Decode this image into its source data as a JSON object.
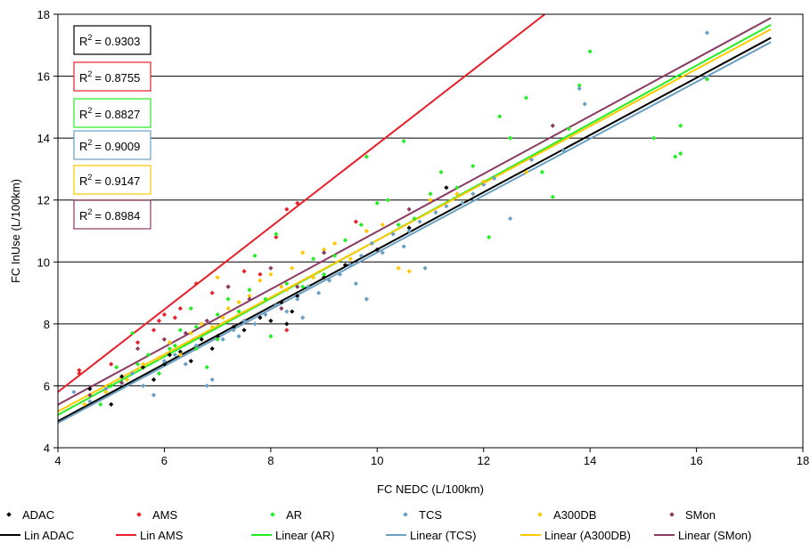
{
  "chart_data": {
    "type": "scatter",
    "title": "",
    "xlabel": "FC NEDC (L/100km)",
    "ylabel": "FC InUse (L/100km)",
    "xlim": [
      4,
      18
    ],
    "ylim": [
      4,
      18
    ],
    "x_ticks": [
      4,
      6,
      8,
      10,
      12,
      14,
      16,
      18
    ],
    "y_ticks": [
      4,
      6,
      8,
      10,
      12,
      14,
      16,
      18
    ],
    "grid": "horizontal",
    "legend_position": "bottom",
    "series": [
      {
        "name": "ADAC",
        "color": "#000000",
        "points": [
          [
            4.6,
            5.9
          ],
          [
            5.0,
            5.4
          ],
          [
            5.2,
            6.3
          ],
          [
            5.6,
            6.6
          ],
          [
            5.8,
            6.2
          ],
          [
            6.0,
            6.7
          ],
          [
            6.1,
            7.0
          ],
          [
            6.3,
            7.1
          ],
          [
            6.5,
            6.8
          ],
          [
            6.7,
            7.5
          ],
          [
            6.9,
            7.2
          ],
          [
            7.0,
            7.6
          ],
          [
            7.3,
            7.9
          ],
          [
            7.5,
            7.8
          ],
          [
            7.8,
            8.2
          ],
          [
            8.0,
            8.1
          ],
          [
            8.2,
            8.7
          ],
          [
            8.4,
            8.4
          ],
          [
            8.5,
            8.9
          ],
          [
            9.0,
            9.5
          ],
          [
            9.4,
            9.9
          ],
          [
            10.0,
            10.4
          ],
          [
            10.6,
            11.1
          ],
          [
            11.3,
            12.4
          ],
          [
            8.3,
            8.0
          ]
        ]
      },
      {
        "name": "AMS",
        "color": "#e8202a",
        "points": [
          [
            4.4,
            6.4
          ],
          [
            4.4,
            6.5
          ],
          [
            5.0,
            6.7
          ],
          [
            5.5,
            7.4
          ],
          [
            5.8,
            7.8
          ],
          [
            5.9,
            8.1
          ],
          [
            6.0,
            8.3
          ],
          [
            6.2,
            8.2
          ],
          [
            6.3,
            8.5
          ],
          [
            6.6,
            9.3
          ],
          [
            6.9,
            9.0
          ],
          [
            7.2,
            9.2
          ],
          [
            7.5,
            9.7
          ],
          [
            7.8,
            9.6
          ],
          [
            8.3,
            11.7
          ],
          [
            8.5,
            11.9
          ],
          [
            8.1,
            10.8
          ],
          [
            9.6,
            11.3
          ],
          [
            8.3,
            7.8
          ]
        ]
      },
      {
        "name": "AR",
        "color": "#22ee22",
        "points": [
          [
            4.8,
            5.4
          ],
          [
            5.0,
            6.0
          ],
          [
            5.1,
            6.6
          ],
          [
            5.4,
            7.7
          ],
          [
            5.5,
            6.7
          ],
          [
            5.7,
            7.0
          ],
          [
            5.9,
            6.4
          ],
          [
            6.1,
            7.2
          ],
          [
            6.2,
            7.3
          ],
          [
            6.3,
            7.8
          ],
          [
            6.5,
            8.5
          ],
          [
            6.6,
            7.9
          ],
          [
            6.8,
            6.6
          ],
          [
            7.0,
            8.3
          ],
          [
            7.2,
            8.8
          ],
          [
            7.4,
            8.4
          ],
          [
            7.6,
            9.1
          ],
          [
            7.7,
            10.2
          ],
          [
            7.9,
            8.8
          ],
          [
            8.1,
            10.9
          ],
          [
            8.3,
            9.3
          ],
          [
            8.6,
            9.2
          ],
          [
            8.8,
            10.1
          ],
          [
            9.0,
            9.6
          ],
          [
            9.2,
            10.2
          ],
          [
            9.4,
            10.7
          ],
          [
            9.7,
            11.2
          ],
          [
            9.8,
            13.4
          ],
          [
            10.0,
            11.9
          ],
          [
            10.2,
            12.0
          ],
          [
            10.4,
            11.2
          ],
          [
            10.5,
            13.9
          ],
          [
            10.7,
            11.4
          ],
          [
            11.0,
            12.2
          ],
          [
            11.2,
            12.9
          ],
          [
            11.5,
            12.4
          ],
          [
            11.8,
            13.1
          ],
          [
            12.1,
            10.8
          ],
          [
            12.3,
            14.7
          ],
          [
            12.5,
            14.0
          ],
          [
            12.8,
            15.3
          ],
          [
            13.3,
            12.1
          ],
          [
            13.6,
            14.3
          ],
          [
            13.8,
            15.7
          ],
          [
            14.0,
            16.8
          ],
          [
            15.2,
            14.0
          ],
          [
            15.6,
            13.4
          ],
          [
            15.7,
            13.5
          ],
          [
            15.7,
            14.4
          ],
          [
            16.2,
            15.9
          ],
          [
            13.1,
            12.9
          ],
          [
            8.0,
            7.6
          ],
          [
            7.0,
            7.5
          ],
          [
            6.6,
            7.2
          ]
        ]
      },
      {
        "name": "TCS",
        "color": "#6a9fc4",
        "points": [
          [
            4.3,
            5.8
          ],
          [
            4.6,
            5.5
          ],
          [
            4.9,
            5.9
          ],
          [
            5.2,
            6.1
          ],
          [
            5.4,
            6.4
          ],
          [
            5.6,
            6.0
          ],
          [
            5.8,
            5.7
          ],
          [
            6.0,
            6.8
          ],
          [
            6.2,
            7.0
          ],
          [
            6.4,
            6.7
          ],
          [
            6.6,
            7.3
          ],
          [
            6.8,
            6.0
          ],
          [
            6.9,
            6.2
          ],
          [
            7.1,
            7.5
          ],
          [
            7.3,
            7.8
          ],
          [
            7.5,
            8.1
          ],
          [
            7.7,
            8.0
          ],
          [
            7.9,
            8.3
          ],
          [
            8.1,
            8.6
          ],
          [
            8.3,
            8.4
          ],
          [
            8.5,
            8.8
          ],
          [
            8.7,
            9.2
          ],
          [
            8.9,
            9.0
          ],
          [
            9.1,
            9.4
          ],
          [
            9.3,
            9.6
          ],
          [
            9.5,
            9.9
          ],
          [
            9.7,
            10.2
          ],
          [
            9.8,
            8.8
          ],
          [
            9.9,
            10.6
          ],
          [
            10.1,
            10.3
          ],
          [
            10.3,
            10.9
          ],
          [
            10.5,
            10.5
          ],
          [
            10.6,
            11.0
          ],
          [
            10.8,
            11.3
          ],
          [
            10.9,
            9.8
          ],
          [
            11.1,
            11.6
          ],
          [
            11.3,
            11.8
          ],
          [
            11.6,
            11.9
          ],
          [
            11.8,
            12.2
          ],
          [
            12.0,
            12.5
          ],
          [
            12.2,
            12.7
          ],
          [
            12.5,
            11.4
          ],
          [
            12.9,
            13.3
          ],
          [
            13.5,
            13.6
          ],
          [
            13.9,
            15.1
          ],
          [
            13.8,
            15.6
          ],
          [
            16.2,
            17.4
          ],
          [
            8.6,
            8.2
          ],
          [
            7.4,
            7.6
          ],
          [
            9.6,
            9.3
          ]
        ]
      },
      {
        "name": "A300DB",
        "color": "#ffc800",
        "points": [
          [
            4.5,
            5.4
          ],
          [
            4.9,
            5.8
          ],
          [
            5.3,
            6.2
          ],
          [
            5.6,
            6.7
          ],
          [
            5.9,
            6.9
          ],
          [
            6.1,
            7.4
          ],
          [
            6.3,
            7.0
          ],
          [
            6.5,
            7.7
          ],
          [
            6.7,
            8.0
          ],
          [
            6.9,
            7.9
          ],
          [
            7.0,
            9.5
          ],
          [
            7.2,
            8.5
          ],
          [
            7.4,
            8.7
          ],
          [
            7.6,
            8.9
          ],
          [
            7.8,
            9.4
          ],
          [
            8.0,
            9.6
          ],
          [
            8.2,
            9.2
          ],
          [
            8.4,
            9.8
          ],
          [
            8.6,
            10.3
          ],
          [
            8.8,
            9.5
          ],
          [
            9.0,
            10.4
          ],
          [
            9.2,
            10.6
          ],
          [
            9.5,
            10.1
          ],
          [
            9.8,
            11.0
          ],
          [
            10.1,
            11.2
          ],
          [
            10.4,
            9.8
          ],
          [
            10.6,
            9.7
          ],
          [
            11.0,
            12.0
          ],
          [
            11.5,
            12.2
          ],
          [
            12.0,
            12.6
          ],
          [
            12.8,
            12.9
          ],
          [
            8.3,
            9.1
          ],
          [
            7.1,
            8.2
          ]
        ]
      },
      {
        "name": "SMon",
        "color": "#8b3a62",
        "points": [
          [
            4.6,
            5.7
          ],
          [
            5.2,
            6.1
          ],
          [
            5.5,
            7.2
          ],
          [
            6.0,
            7.5
          ],
          [
            6.4,
            7.7
          ],
          [
            6.8,
            8.1
          ],
          [
            7.2,
            9.2
          ],
          [
            7.6,
            8.8
          ],
          [
            8.0,
            9.8
          ],
          [
            8.5,
            9.2
          ],
          [
            9.0,
            10.3
          ],
          [
            10.6,
            11.7
          ],
          [
            13.3,
            14.4
          ],
          [
            8.2,
            8.5
          ]
        ]
      }
    ],
    "trendlines": [
      {
        "name": "Lin ADAC",
        "color": "#000000",
        "x": [
          4,
          17.4
        ],
        "y": [
          4.86,
          17.24
        ]
      },
      {
        "name": "Lin AMS",
        "color": "#e8202a",
        "x": [
          4,
          13.15
        ],
        "y": [
          5.8,
          18.0
        ]
      },
      {
        "name": "Linear (AR)",
        "color": "#22ee22",
        "x": [
          4,
          17.4
        ],
        "y": [
          5.06,
          17.66
        ]
      },
      {
        "name": "Linear (TCS)",
        "color": "#6a9fc4",
        "x": [
          4,
          17.4
        ],
        "y": [
          4.8,
          17.1
        ]
      },
      {
        "name": "Linear (A300DB)",
        "color": "#ffc800",
        "x": [
          4,
          17.4
        ],
        "y": [
          5.17,
          17.52
        ]
      },
      {
        "name": "Linear (SMon)",
        "color": "#8b3a62",
        "x": [
          4,
          17.4
        ],
        "y": [
          5.39,
          17.88
        ]
      }
    ],
    "r2_boxes": [
      {
        "text": "= 0.9303",
        "color": "#000000"
      },
      {
        "text": "= 0.8755",
        "color": "#e8202a"
      },
      {
        "text": "= 0.8827",
        "color": "#22ee22"
      },
      {
        "text": "= 0.9009",
        "color": "#6a9fc4"
      },
      {
        "text": "= 0.9147",
        "color": "#ffc800"
      },
      {
        "text": "= 0.8984",
        "color": "#8b3a62"
      }
    ]
  }
}
